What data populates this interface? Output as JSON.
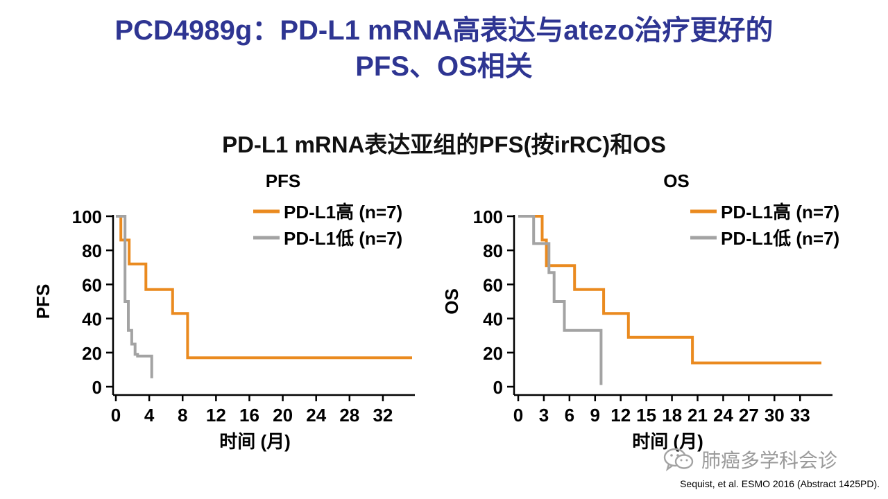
{
  "page": {
    "title_line1": "PCD4989g：PD-L1 mRNA高表达与atezo治疗更好的",
    "title_line2": "PFS、OS相关",
    "subtitle": "PD-L1 mRNA表达亚组的PFS(按irRC)和OS",
    "citation": "Sequist, et al. ESMO 2016 (Abstract 1425PD).",
    "watermark": "肺癌多学科会诊",
    "watermark_icon": "wechat-icon"
  },
  "colors": {
    "title": "#2e3592",
    "high": "#ea8a1f",
    "low": "#a3a3a3",
    "axis": "#000000"
  },
  "chart_data": [
    {
      "type": "line",
      "step": true,
      "title": "PFS",
      "xlabel": "时间 (月)",
      "ylabel": "PFS",
      "xlim": [
        0,
        34.5
      ],
      "ylim": [
        0,
        100
      ],
      "xticks": [
        0,
        4,
        8,
        12,
        16,
        20,
        24,
        28,
        32
      ],
      "yticks": [
        0,
        20,
        40,
        60,
        80,
        100
      ],
      "legend": "top-right",
      "series": [
        {
          "name": "PD-L1高 (n=7)",
          "color_key": "high",
          "x": [
            0,
            0.6,
            0.6,
            1.6,
            1.6,
            3.6,
            3.6,
            6.8,
            6.8,
            8.6,
            8.6,
            35.5
          ],
          "y": [
            100,
            100,
            86,
            86,
            72,
            72,
            57,
            57,
            43,
            43,
            17,
            17
          ]
        },
        {
          "name": "PD-L1低 (n=7)",
          "color_key": "low",
          "x": [
            0,
            1.1,
            1.1,
            1.5,
            1.5,
            1.9,
            1.9,
            2.3,
            2.3,
            2.6,
            2.6,
            4.3,
            4.3
          ],
          "y": [
            100,
            100,
            50,
            50,
            33,
            33,
            25,
            25,
            19,
            19,
            18,
            18,
            5
          ]
        }
      ]
    },
    {
      "type": "line",
      "step": true,
      "title": "OS",
      "xlabel": "时间 (月)",
      "ylabel": "OS",
      "xlim": [
        0,
        35.5
      ],
      "ylim": [
        0,
        100
      ],
      "xticks": [
        0,
        3,
        6,
        9,
        12,
        15,
        18,
        21,
        24,
        27,
        30,
        33
      ],
      "yticks": [
        0,
        20,
        40,
        60,
        80,
        100
      ],
      "legend": "top-right",
      "series": [
        {
          "name": "PD-L1高 (n=7)",
          "color_key": "high",
          "x": [
            0,
            2.8,
            2.8,
            3.3,
            3.3,
            6.6,
            6.6,
            10,
            10,
            12.9,
            12.9,
            20.4,
            20.4,
            35.5
          ],
          "y": [
            100,
            100,
            86,
            86,
            71,
            71,
            57,
            57,
            43,
            43,
            29,
            29,
            14,
            14
          ]
        },
        {
          "name": "PD-L1低 (n=7)",
          "color_key": "low",
          "x": [
            0,
            1.8,
            1.8,
            3.6,
            3.6,
            4.2,
            4.2,
            5.4,
            5.4,
            9.7,
            9.7
          ],
          "y": [
            100,
            100,
            84,
            84,
            67,
            67,
            50,
            50,
            33,
            33,
            1
          ]
        }
      ]
    }
  ]
}
